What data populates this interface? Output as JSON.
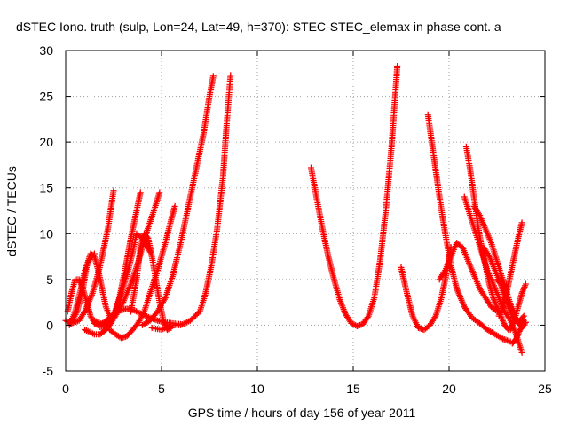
{
  "chart_data": {
    "type": "scatter",
    "title": "dSTEC Iono. truth (sulp, Lon=24, Lat=49, h=370): STEC-STEC_elemax in phase cont. a",
    "xlabel": "GPS time / hours of day 156 of year 2011",
    "ylabel": "dSTEC  / TECUs",
    "xlim": [
      0,
      25
    ],
    "ylim": [
      -5,
      30
    ],
    "xticks": [
      0,
      5,
      10,
      15,
      20,
      25
    ],
    "yticks": [
      -5,
      0,
      5,
      10,
      15,
      20,
      25,
      30
    ],
    "grid": true,
    "marker": "plus",
    "color": "#ff0000",
    "series": [
      {
        "x": [
          0.0,
          0.3,
          0.7,
          1.0,
          1.4,
          1.8,
          2.2,
          2.5
        ],
        "y": [
          0.5,
          0.2,
          0.5,
          1.5,
          3.5,
          6.5,
          10.5,
          14.7
        ]
      },
      {
        "x": [
          0.1,
          0.3,
          0.5,
          0.7,
          0.9,
          1.1,
          1.3,
          1.5,
          1.7,
          2.0,
          2.4,
          2.8,
          3.2,
          3.6,
          4.0,
          4.4,
          4.8,
          5.2,
          5.6,
          6.0
        ],
        "y": [
          1.5,
          3.5,
          5.0,
          5.0,
          4.0,
          2.5,
          1.0,
          0.2,
          0.0,
          0.3,
          1.0,
          1.6,
          1.8,
          1.6,
          1.2,
          0.8,
          0.5,
          0.3,
          0.2,
          0.1
        ]
      },
      {
        "x": [
          0.3,
          0.6,
          0.9,
          1.1,
          1.3,
          1.5,
          1.7,
          1.9,
          2.1,
          2.4
        ],
        "y": [
          0.3,
          1.5,
          4.0,
          6.5,
          7.8,
          7.5,
          6.0,
          4.0,
          2.0,
          0.5
        ]
      },
      {
        "x": [
          0.2,
          0.5,
          0.8,
          1.0,
          1.2,
          1.5
        ],
        "y": [
          0.0,
          1.5,
          4.0,
          6.0,
          7.0,
          7.8
        ]
      },
      {
        "x": [
          1.5,
          2.0,
          2.5,
          2.8,
          3.1,
          3.4,
          3.7,
          3.9
        ],
        "y": [
          0.5,
          0.0,
          1.0,
          3.0,
          6.0,
          9.5,
          12.5,
          14.5
        ]
      },
      {
        "x": [
          1.0,
          1.5,
          1.8,
          2.2,
          2.6,
          3.0,
          3.4,
          3.8,
          4.2,
          4.6,
          4.9
        ],
        "y": [
          -0.5,
          -1.0,
          -1.0,
          -0.3,
          1.0,
          2.5,
          4.5,
          7.0,
          10.0,
          12.5,
          14.5
        ]
      },
      {
        "x": [
          1.8,
          2.2,
          2.6,
          2.9,
          3.2,
          3.5,
          3.7,
          4.0,
          4.4
        ],
        "y": [
          -0.2,
          0.0,
          1.5,
          3.5,
          5.5,
          8.0,
          10.0,
          9.5,
          8.0
        ]
      },
      {
        "x": [
          3.4,
          3.7,
          3.9,
          4.1,
          4.3,
          4.5,
          4.7,
          4.9,
          5.1,
          5.3,
          5.5
        ],
        "y": [
          1.5,
          5.0,
          8.5,
          10.0,
          9.5,
          7.5,
          5.0,
          2.5,
          0.5,
          -0.5,
          -0.3
        ]
      },
      {
        "x": [
          2.3,
          2.6,
          2.9,
          3.2,
          3.5,
          3.8,
          4.1,
          4.4,
          4.8,
          5.2,
          5.5,
          5.7
        ],
        "y": [
          -0.5,
          -1.0,
          -1.4,
          -1.2,
          -0.5,
          0.3,
          1.5,
          3.5,
          6.0,
          9.0,
          11.5,
          13.0
        ]
      },
      {
        "x": [
          4.0,
          4.4,
          4.8,
          5.2,
          5.6,
          6.0,
          6.4,
          6.8,
          7.2,
          7.5,
          7.7
        ],
        "y": [
          0.0,
          0.5,
          1.5,
          3.0,
          5.5,
          9.0,
          13.0,
          17.0,
          21.0,
          25.0,
          27.2
        ]
      },
      {
        "x": [
          4.5,
          5.0,
          5.5,
          6.0,
          6.5,
          7.0,
          7.3,
          7.6,
          7.9,
          8.2,
          8.4,
          8.6
        ],
        "y": [
          -0.3,
          -0.5,
          0.0,
          0.0,
          0.5,
          1.5,
          3.5,
          6.5,
          10.5,
          16.0,
          22.0,
          27.3
        ]
      },
      {
        "x": [
          12.8,
          13.1,
          13.4,
          13.7,
          14.0,
          14.3,
          14.6,
          14.9,
          15.2,
          15.5,
          15.8,
          16.1,
          16.4,
          16.7,
          17.0,
          17.3
        ],
        "y": [
          17.2,
          13.8,
          10.5,
          7.5,
          5.0,
          2.8,
          1.2,
          0.2,
          -0.1,
          0.1,
          1.0,
          3.0,
          7.0,
          12.5,
          19.5,
          28.3
        ]
      },
      {
        "x": [
          17.5,
          17.8,
          18.1,
          18.4,
          18.7,
          19.0,
          19.3,
          19.6,
          19.9,
          20.1
        ],
        "y": [
          6.3,
          3.5,
          1.0,
          -0.3,
          -0.5,
          0.0,
          1.0,
          3.0,
          6.0,
          8.5
        ]
      },
      {
        "x": [
          18.9,
          19.2,
          19.5,
          19.8,
          20.1,
          20.4,
          20.8,
          21.2,
          21.6,
          22.0,
          22.4,
          22.8,
          23.2
        ],
        "y": [
          23.0,
          18.5,
          14.0,
          10.0,
          6.5,
          4.0,
          2.0,
          0.8,
          0.2,
          -0.5,
          -1.0,
          -1.5,
          -1.8
        ]
      },
      {
        "x": [
          20.9,
          21.1,
          21.3,
          21.5,
          21.7,
          21.9,
          22.1,
          22.3,
          22.5,
          22.7,
          22.9,
          23.1
        ],
        "y": [
          19.5,
          17.0,
          14.0,
          11.0,
          8.5,
          6.5,
          4.5,
          3.0,
          2.0,
          1.0,
          0.0,
          -0.5
        ]
      },
      {
        "x": [
          20.8,
          21.1,
          21.4,
          21.7,
          22.0,
          22.3,
          22.6,
          22.9,
          23.2,
          23.5,
          23.8
        ],
        "y": [
          14.0,
          12.0,
          10.0,
          8.0,
          6.0,
          4.5,
          3.0,
          1.5,
          0.5,
          -1.0,
          -3.0
        ]
      },
      {
        "x": [
          19.5,
          19.8,
          20.1,
          20.4,
          20.7,
          21.0,
          21.3,
          21.6,
          21.9,
          22.2,
          22.5
        ],
        "y": [
          5.0,
          6.0,
          7.5,
          9.0,
          8.5,
          7.0,
          5.5,
          4.0,
          3.0,
          2.0,
          1.5
        ]
      },
      {
        "x": [
          21.3,
          21.6,
          21.9,
          22.2,
          22.5,
          22.8,
          23.1,
          23.4,
          23.7,
          23.9
        ],
        "y": [
          13.0,
          12.0,
          10.5,
          9.0,
          7.0,
          5.0,
          3.0,
          1.0,
          0.0,
          0.5
        ]
      },
      {
        "x": [
          21.8,
          22.1,
          22.4,
          22.7,
          23.0,
          23.3,
          23.5,
          23.7
        ],
        "y": [
          8.5,
          7.5,
          6.0,
          4.5,
          3.0,
          1.5,
          0.5,
          0.0
        ]
      },
      {
        "x": [
          22.6,
          22.8,
          23.0,
          23.2,
          23.4,
          23.6,
          23.8
        ],
        "y": [
          1.0,
          2.0,
          3.5,
          5.5,
          7.5,
          9.5,
          11.2
        ]
      },
      {
        "x": [
          22.5,
          22.7,
          22.9,
          23.1,
          23.3,
          23.5,
          23.7,
          23.9
        ],
        "y": [
          5.0,
          4.5,
          3.0,
          2.0,
          1.0,
          0.5,
          0.5,
          1.0
        ]
      },
      {
        "x": [
          23.2,
          23.4,
          23.6,
          23.8,
          24.0
        ],
        "y": [
          -0.5,
          0.5,
          2.0,
          3.5,
          4.5
        ]
      },
      {
        "x": [
          23.3,
          23.5,
          23.7,
          23.9,
          24.0
        ],
        "y": [
          -2.0,
          -1.5,
          -0.5,
          0.0,
          0.3
        ]
      }
    ]
  }
}
